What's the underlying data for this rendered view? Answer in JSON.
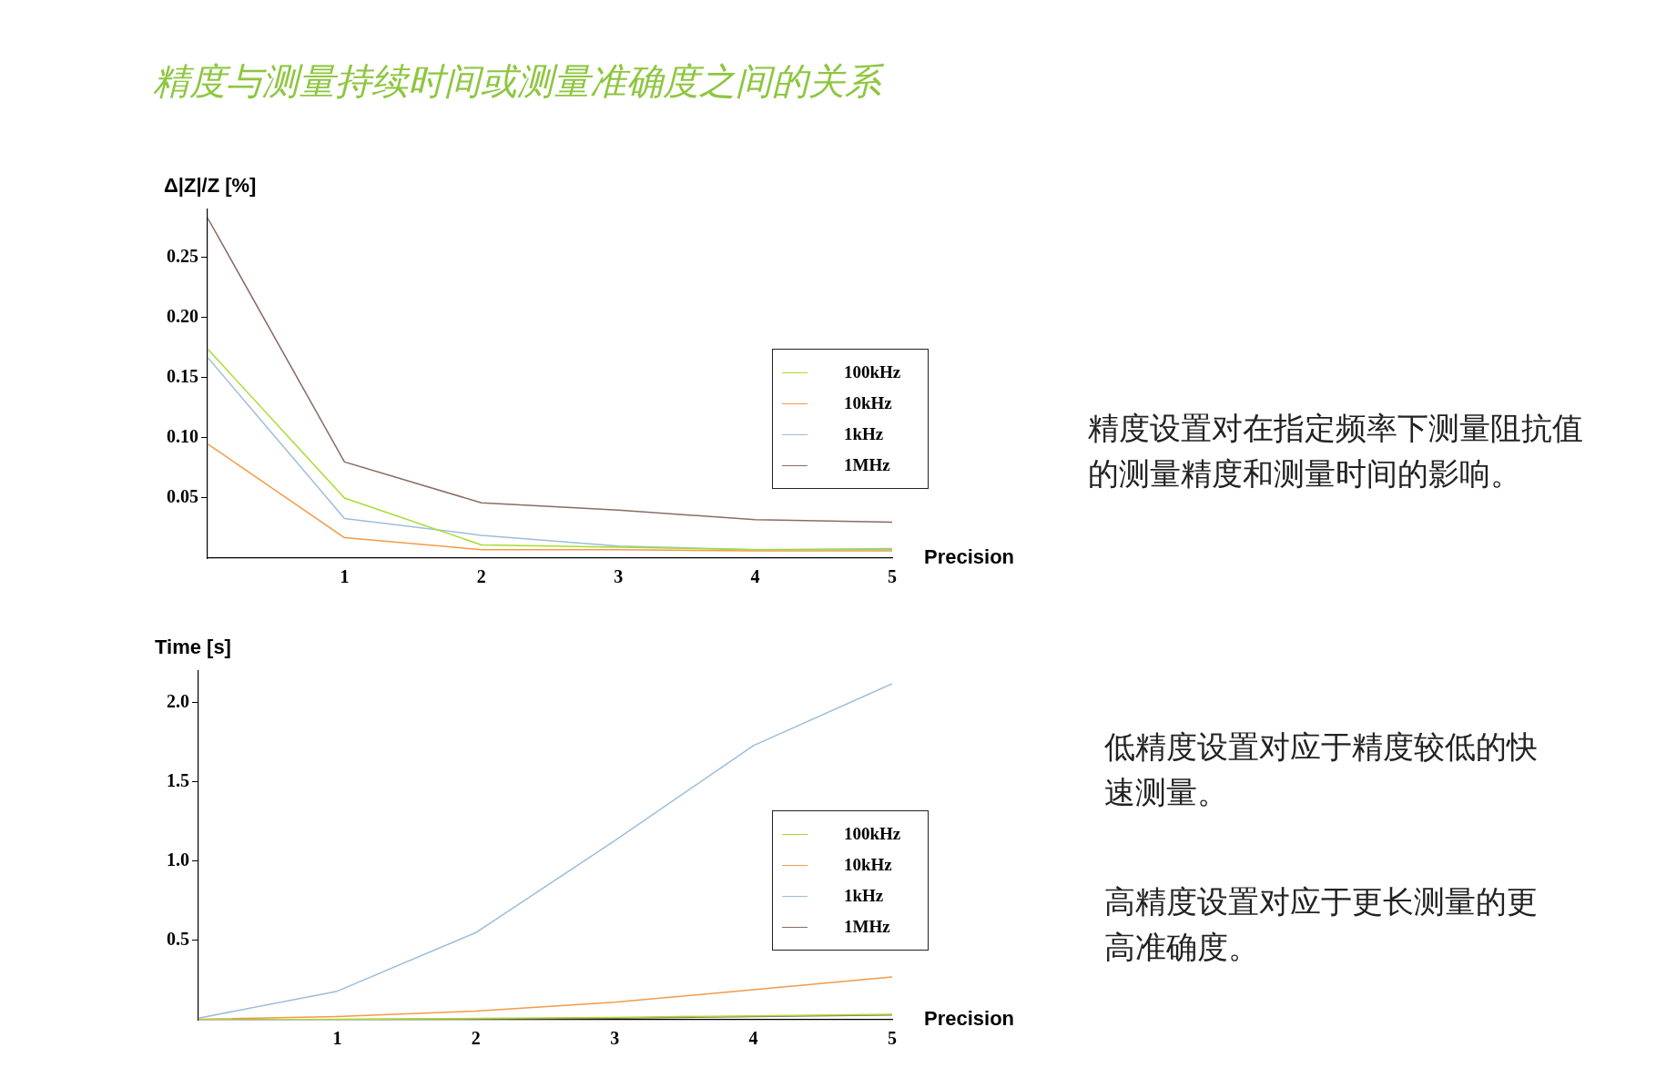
{
  "chart_data": [
    {
      "type": "line",
      "title": "精度与测量持续时间或测量准确度之间的关系",
      "ylabel": "Δ|Z|/Z [%]",
      "xlabel": "Precision",
      "x": [
        0,
        1,
        2,
        3,
        4,
        5
      ],
      "xlim": [
        0,
        5
      ],
      "xticks": [
        1,
        2,
        3,
        4,
        5
      ],
      "ylim": [
        0,
        0.29
      ],
      "yticks": [
        0.05,
        {
          "value": 0.1,
          "label": "0.10"
        },
        0.15,
        {
          "value": 0.2,
          "label": "0.20"
        },
        0.25
      ],
      "legend": "right",
      "marker": "none",
      "line_style": "solid",
      "annotations": [
        "精度设置对在指定频率下测量阻抗值的测量精度和测量时间的影响。"
      ],
      "series": [
        {
          "name": "100kHz",
          "color": "#a8dc2c",
          "values": [
            0.174,
            0.05,
            0.011,
            0.009,
            0.007,
            0.007
          ]
        },
        {
          "name": "10kHz",
          "color": "#f39a48",
          "values": [
            0.095,
            0.017,
            0.007,
            0.007,
            0.006,
            0.006
          ]
        },
        {
          "name": "1kHz",
          "color": "#9dbddb",
          "values": [
            0.167,
            0.033,
            0.019,
            0.01,
            0.007,
            0.008
          ]
        },
        {
          "name": "1MHz",
          "color": "#8a6c64",
          "values": [
            0.283,
            0.08,
            0.046,
            0.04,
            0.032,
            0.03
          ]
        }
      ]
    },
    {
      "type": "line",
      "ylabel": "Time [s]",
      "xlabel": "Precision",
      "x": [
        0,
        1,
        2,
        3,
        4,
        5
      ],
      "xlim": [
        0,
        5
      ],
      "xticks": [
        1,
        2,
        3,
        4,
        5
      ],
      "ylim": [
        0,
        2.2
      ],
      "yticks": [
        {
          "value": 0.5,
          "label": "0.5"
        },
        {
          "value": 1,
          "label": "1.0"
        },
        {
          "value": 1.5,
          "label": "1.5"
        },
        {
          "value": 2,
          "label": "2.0"
        }
      ],
      "legend": "right",
      "marker": "none",
      "line_style": "solid",
      "annotations": [
        "低精度设置对应于精度较低的快速测量。",
        "高精度设置对应于更长测量的更高准确度。"
      ],
      "series": [
        {
          "name": "100kHz",
          "color": "#a8dc2c",
          "values": [
            0,
            0.003,
            0.008,
            0.015,
            0.025,
            0.035
          ]
        },
        {
          "name": "10kHz",
          "color": "#f39a48",
          "values": [
            0.003,
            0.02,
            0.055,
            0.11,
            0.19,
            0.27
          ]
        },
        {
          "name": "1kHz",
          "color": "#9dbddb",
          "values": [
            0.01,
            0.18,
            0.55,
            1.13,
            1.73,
            2.12
          ]
        },
        {
          "name": "1MHz",
          "color": "#8a6c64",
          "values": [
            0,
            0.002,
            0.005,
            0.01,
            0.02,
            0.03
          ]
        }
      ]
    }
  ]
}
